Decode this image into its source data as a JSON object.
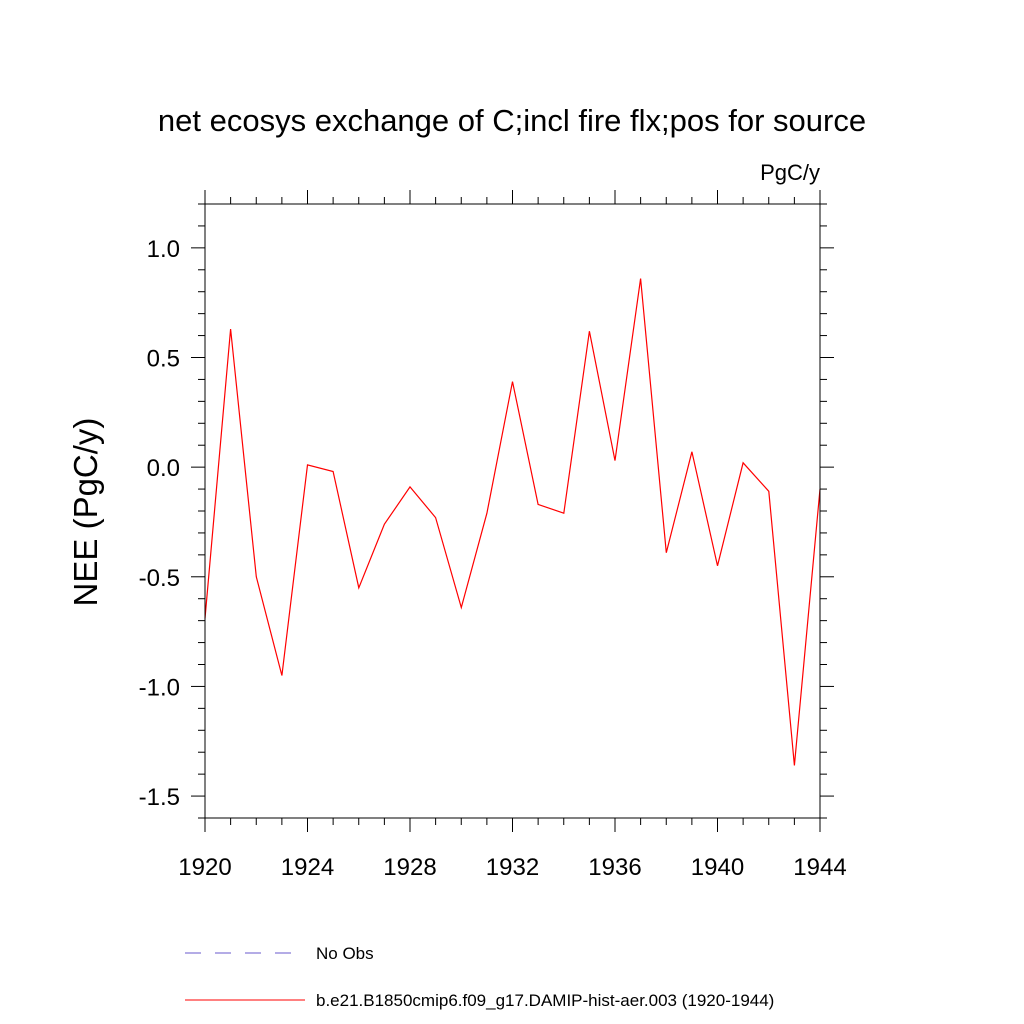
{
  "chart_data": {
    "type": "line",
    "title": "net ecosys exchange of C;incl fire flx;pos for source",
    "units": "PgC/y",
    "xlabel": "",
    "ylabel": "NEE  (PgC/y)",
    "xlim": [
      1920,
      1944
    ],
    "ylim": [
      -1.6,
      1.2
    ],
    "x_ticks": [
      1920,
      1924,
      1928,
      1932,
      1936,
      1940,
      1944
    ],
    "x_tick_labels": [
      "1920",
      "1924",
      "1928",
      "1932",
      "1936",
      "1940",
      "1944"
    ],
    "y_ticks": [
      -1.5,
      -1.0,
      -0.5,
      0.0,
      0.5,
      1.0
    ],
    "y_tick_labels": [
      "-1.5",
      "-1.0",
      "-0.5",
      "0.0",
      "0.5",
      "1.0"
    ],
    "grid": false,
    "legend_position": "bottom",
    "series": [
      {
        "name": "No Obs",
        "color": "#6a5acd",
        "dash": "dashed",
        "x": [],
        "values": []
      },
      {
        "name": "b.e21.B1850cmip6.f09_g17.DAMIP-hist-aer.003 (1920-1944)",
        "color": "#ff0000",
        "dash": "solid",
        "x": [
          1920,
          1921,
          1922,
          1923,
          1924,
          1925,
          1926,
          1927,
          1928,
          1929,
          1930,
          1931,
          1932,
          1933,
          1934,
          1935,
          1936,
          1937,
          1938,
          1939,
          1940,
          1941,
          1942,
          1943,
          1944
        ],
        "values": [
          -0.69,
          0.63,
          -0.5,
          -0.95,
          0.01,
          -0.02,
          -0.55,
          -0.26,
          -0.09,
          -0.23,
          -0.64,
          -0.21,
          0.39,
          -0.17,
          -0.21,
          0.62,
          0.03,
          0.86,
          -0.39,
          0.07,
          -0.45,
          0.02,
          -0.11,
          -1.36,
          -0.1
        ]
      }
    ]
  }
}
